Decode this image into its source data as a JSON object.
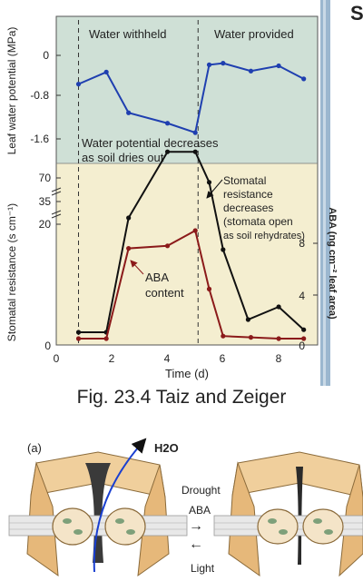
{
  "figure": {
    "caption": "Fig. 23.4 Taiz and Zeiger",
    "corner_fragment": "S"
  },
  "chart_data": [
    {
      "type": "line",
      "ylabel": "Leaf water potential (MPa)",
      "ylim": [
        -1.8,
        0
      ],
      "yticks": [
        "0",
        "-0.8",
        "-1.6"
      ],
      "regions": [
        {
          "label": "Water withheld"
        },
        {
          "label": "Water provided"
        }
      ],
      "dividers_x": [
        0.8,
        5.1
      ],
      "series": [
        {
          "color": "#1f3fb0",
          "x": [
            0.8,
            1.8,
            2.6,
            4.0,
            5.0,
            5.5,
            6.0,
            7.0,
            8.0,
            8.9
          ],
          "y": [
            -0.55,
            -0.32,
            -1.1,
            -1.3,
            -1.48,
            -0.18,
            -0.15,
            -0.3,
            -0.2,
            -0.45
          ]
        }
      ],
      "annotations": [
        {
          "lines": [
            "Water potential decreases",
            "as soil dries out"
          ]
        }
      ]
    },
    {
      "type": "line",
      "xlabel": "Time (d)",
      "xlim": [
        0,
        9.4
      ],
      "xticks": [
        "0",
        "2",
        "4",
        "6",
        "8"
      ],
      "ylabel": "Stomatal resistance (s cm⁻¹)",
      "y_axis_break": true,
      "yticks_left": [
        "0",
        "20",
        "35",
        "70"
      ],
      "y2label": "ABA (ng cm⁻² leaf area)",
      "yticks_right": [
        "0",
        "4",
        "8"
      ],
      "series": [
        {
          "color": "#111111",
          "x": [
            0.8,
            1.8,
            2.6,
            4.0,
            5.0,
            5.5,
            6.0,
            6.9,
            8.0,
            8.9
          ],
          "y": [
            1,
            1,
            10,
            15.2,
            15.2,
            12.8,
            7.5,
            2,
            3,
            1.2
          ]
        },
        {
          "color": "#8b1a1a",
          "x": [
            0.8,
            1.8,
            2.6,
            4.0,
            5.0,
            5.5,
            6.0,
            7.0,
            8.0,
            8.9
          ],
          "y": [
            0.5,
            0.5,
            7.6,
            7.8,
            9.0,
            4.4,
            0.7,
            0.6,
            0.5,
            0.5
          ]
        }
      ],
      "annotations": [
        {
          "lines": [
            "Stomatal",
            "resistance",
            "decreases",
            "(stomata open",
            "as soil rehydrates)"
          ]
        },
        {
          "lines": [
            "ABA",
            "content"
          ]
        }
      ]
    }
  ],
  "diagram": {
    "panel_label": "(a)",
    "molecule": "H2O",
    "label_drought": "Drought",
    "label_aba": "ABA",
    "label_light": "Light",
    "arrow_right": "→",
    "arrow_left": "←"
  }
}
